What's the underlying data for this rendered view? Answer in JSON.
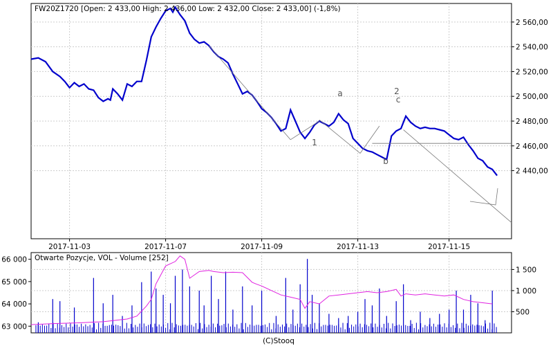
{
  "footer": {
    "source": "(C)Stooq"
  },
  "chart_data": [
    {
      "type": "line",
      "title": "FW20Z1720 [Open: 2 433,00  High: 2 436,00  Low: 2 432,00  Close: 2 433,00] (-1,8%)",
      "x_tick_labels": [
        "2017-11-03",
        "2017-11-07",
        "2017-11-09",
        "2017-11-13",
        "2017-11-15"
      ],
      "y_tick_labels": [
        "2 440,00",
        "2 460,00",
        "2 480,00",
        "2 500,00",
        "2 520,00",
        "2 540,00",
        "2 560,00"
      ],
      "y_ticks": [
        2440,
        2460,
        2480,
        2500,
        2520,
        2540,
        2560
      ],
      "ylim": [
        2385,
        2575
      ],
      "xlim": [
        0,
        100
      ],
      "grid": true,
      "series_color": "#0000cc",
      "series": [
        {
          "x": [
            0,
            1.5,
            3,
            4.5,
            6,
            7,
            8,
            9,
            10,
            11,
            12,
            13,
            14,
            15,
            16,
            16.5,
            17,
            18,
            19,
            20,
            21,
            22,
            23,
            24,
            25,
            26,
            27,
            28,
            29,
            29.5,
            30,
            31,
            32,
            33,
            34,
            35,
            36,
            37,
            38,
            39,
            40,
            41,
            42,
            43,
            44,
            45,
            46,
            47,
            48,
            49,
            50,
            51,
            52,
            53,
            54,
            55,
            56,
            57,
            58,
            59,
            60,
            61,
            62,
            63,
            64,
            65,
            66,
            67,
            68,
            69,
            70,
            71,
            72,
            73,
            74,
            75,
            76,
            77,
            78,
            79,
            80,
            81,
            82,
            83,
            84,
            85,
            86,
            87,
            88,
            89,
            90,
            91,
            92,
            93,
            94,
            95,
            96,
            97
          ],
          "y": [
            2530,
            2531,
            2528,
            2520,
            2516,
            2512,
            2507,
            2511,
            2508,
            2510,
            2506,
            2505,
            2499,
            2496,
            2498,
            2497,
            2506,
            2502,
            2497,
            2510,
            2508,
            2512,
            2512,
            2529,
            2548,
            2556,
            2563,
            2569,
            2571,
            2568,
            2572,
            2566,
            2561,
            2551,
            2546,
            2543,
            2544,
            2541,
            2536,
            2532,
            2530,
            2527,
            2518,
            2510,
            2502,
            2504,
            2501,
            2496,
            2490,
            2487,
            2483,
            2478,
            2472,
            2474,
            2489,
            2480,
            2471,
            2466,
            2471,
            2477,
            2480,
            2478,
            2476,
            2479,
            2486,
            2481,
            2478,
            2466,
            2462,
            2458,
            2456,
            2455,
            2453,
            2451,
            2449,
            2468,
            2472,
            2474,
            2484,
            2479,
            2476,
            2474,
            2475,
            2474,
            2474,
            2473,
            2472,
            2469,
            2466,
            2465,
            2467,
            2461,
            2456,
            2450,
            2448,
            2443,
            2441,
            2436
          ]
        }
      ],
      "annotations": [
        "1",
        "a",
        "b",
        "2",
        "c"
      ]
    },
    {
      "type": "bar",
      "title": "Otwarte Pozycje, VOL - Volume [252]",
      "left_axis_labels": [
        "63 000",
        "64 000",
        "65 000",
        "66 000"
      ],
      "left_axis_values": [
        63000,
        64000,
        65000,
        66000
      ],
      "left_ylim": [
        62700,
        66300
      ],
      "right_axis_labels": [
        "500",
        "1 000",
        "1 500"
      ],
      "right_axis_values": [
        500,
        1000,
        1500
      ],
      "right_ylim": [
        0,
        1900
      ],
      "volume_color": "#0000cc",
      "open_interest_color": "#e020e0",
      "open_interest": {
        "x": [
          0,
          5,
          10,
          15,
          20,
          22,
          24,
          25,
          26,
          28,
          30,
          31,
          32,
          33,
          35,
          37,
          38,
          40,
          42,
          44,
          46,
          47,
          48,
          50,
          52,
          54,
          56,
          57,
          58,
          60,
          62,
          64,
          66,
          68,
          70,
          72,
          74,
          76,
          77,
          78,
          80,
          82,
          84,
          86,
          88,
          90,
          91,
          92,
          94,
          96
        ],
        "y": [
          63070,
          63120,
          63150,
          63200,
          63320,
          63450,
          63900,
          64200,
          64900,
          65700,
          65900,
          66150,
          66000,
          65150,
          65450,
          65500,
          65450,
          65400,
          65420,
          65400,
          64970,
          64880,
          64800,
          64600,
          64400,
          64300,
          64200,
          63800,
          64100,
          64000,
          64350,
          64400,
          64450,
          64500,
          64550,
          64500,
          64550,
          64650,
          64350,
          64450,
          64400,
          64450,
          64400,
          64350,
          64400,
          64200,
          64150,
          64100,
          64050,
          64000
        ]
      },
      "volume_peaks": [
        {
          "x": 1.5,
          "v": 250
        },
        {
          "x": 4.5,
          "v": 800
        },
        {
          "x": 6,
          "v": 750
        },
        {
          "x": 9,
          "v": 600
        },
        {
          "x": 13,
          "v": 1300
        },
        {
          "x": 15,
          "v": 700
        },
        {
          "x": 17,
          "v": 900
        },
        {
          "x": 19,
          "v": 400
        },
        {
          "x": 21,
          "v": 650
        },
        {
          "x": 23,
          "v": 1200
        },
        {
          "x": 25,
          "v": 1450
        },
        {
          "x": 26,
          "v": 1050
        },
        {
          "x": 27.5,
          "v": 900
        },
        {
          "x": 29,
          "v": 700
        },
        {
          "x": 30,
          "v": 1350
        },
        {
          "x": 31.5,
          "v": 1500
        },
        {
          "x": 33,
          "v": 1100
        },
        {
          "x": 35,
          "v": 1000
        },
        {
          "x": 36,
          "v": 650
        },
        {
          "x": 37.5,
          "v": 1350
        },
        {
          "x": 39,
          "v": 800
        },
        {
          "x": 40.5,
          "v": 1450
        },
        {
          "x": 42,
          "v": 550
        },
        {
          "x": 44,
          "v": 1100
        },
        {
          "x": 46,
          "v": 650
        },
        {
          "x": 48,
          "v": 1000
        },
        {
          "x": 51,
          "v": 400
        },
        {
          "x": 53,
          "v": 1300
        },
        {
          "x": 54.5,
          "v": 550
        },
        {
          "x": 56,
          "v": 1150
        },
        {
          "x": 57.5,
          "v": 1750
        },
        {
          "x": 58.5,
          "v": 900
        },
        {
          "x": 60,
          "v": 700
        },
        {
          "x": 62,
          "v": 450
        },
        {
          "x": 64,
          "v": 350
        },
        {
          "x": 66,
          "v": 400
        },
        {
          "x": 68,
          "v": 500
        },
        {
          "x": 69.5,
          "v": 800
        },
        {
          "x": 71,
          "v": 650
        },
        {
          "x": 72.5,
          "v": 1050
        },
        {
          "x": 74,
          "v": 400
        },
        {
          "x": 76,
          "v": 750
        },
        {
          "x": 77.5,
          "v": 1150
        },
        {
          "x": 79,
          "v": 300
        },
        {
          "x": 81,
          "v": 500
        },
        {
          "x": 83,
          "v": 350
        },
        {
          "x": 85,
          "v": 450
        },
        {
          "x": 87,
          "v": 550
        },
        {
          "x": 88.5,
          "v": 1000
        },
        {
          "x": 90,
          "v": 550
        },
        {
          "x": 91.5,
          "v": 900
        },
        {
          "x": 93,
          "v": 700
        },
        {
          "x": 94.5,
          "v": 300
        },
        {
          "x": 96,
          "v": 1000
        }
      ]
    }
  ]
}
